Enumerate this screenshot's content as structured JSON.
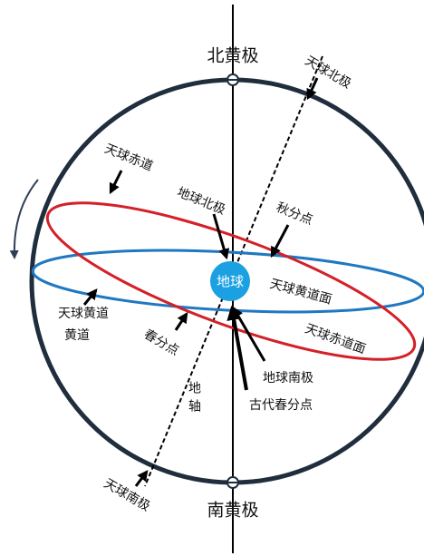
{
  "labels": {
    "north_ecliptic_pole": "北黄极",
    "south_ecliptic_pole": "南黄极",
    "celestial_north_pole": "天球北极",
    "celestial_south_pole": "天球南极",
    "celestial_equator": "天球赤道",
    "earth_north_pole": "地球北极",
    "autumn_equinox": "秋分点",
    "earth": "地球",
    "ecliptic_plane": "天球黄道面",
    "equatorial_plane": "天球赤道面",
    "celestial_ecliptic": "天球黄道",
    "ecliptic": "黄道",
    "spring_equinox": "春分点",
    "earth_south_pole": "地球南极",
    "ancient_spring_equinox": "古代春分点",
    "earth_axis": "地轴"
  }
}
